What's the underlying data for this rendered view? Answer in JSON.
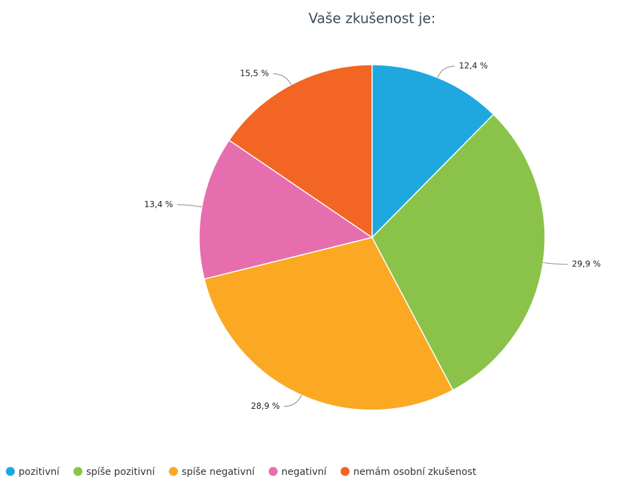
{
  "chart_data": {
    "type": "pie",
    "title": "Vaše zkušenost je:",
    "categories": [
      "pozitivní",
      "spíše pozitivní",
      "spíše negativní",
      "negativní",
      "nemám osobní zkušenost"
    ],
    "values": [
      12.4,
      29.9,
      28.9,
      13.4,
      15.5
    ],
    "value_labels": [
      "12,4 %",
      "29,9 %",
      "28,9 %",
      "13,4 %",
      "15,5 %"
    ],
    "colors": [
      "#1fa8e0",
      "#8bc34a",
      "#fba823",
      "#e76eae",
      "#f26522"
    ]
  }
}
